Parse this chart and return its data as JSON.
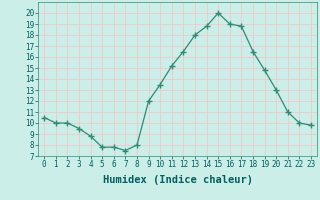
{
  "x": [
    0,
    1,
    2,
    3,
    4,
    5,
    6,
    7,
    8,
    9,
    10,
    11,
    12,
    13,
    14,
    15,
    16,
    17,
    18,
    19,
    20,
    21,
    22,
    23
  ],
  "y": [
    10.5,
    10.0,
    10.0,
    9.5,
    8.8,
    7.8,
    7.8,
    7.5,
    8.0,
    12.0,
    13.5,
    15.2,
    16.5,
    18.0,
    18.8,
    20.0,
    19.0,
    18.8,
    16.5,
    14.8,
    13.0,
    11.0,
    10.0,
    9.8
  ],
  "xlabel": "Humidex (Indice chaleur)",
  "ylim": [
    7,
    21
  ],
  "xlim": [
    -0.5,
    23.5
  ],
  "yticks": [
    7,
    8,
    9,
    10,
    11,
    12,
    13,
    14,
    15,
    16,
    17,
    18,
    19,
    20
  ],
  "xticks": [
    0,
    1,
    2,
    3,
    4,
    5,
    6,
    7,
    8,
    9,
    10,
    11,
    12,
    13,
    14,
    15,
    16,
    17,
    18,
    19,
    20,
    21,
    22,
    23
  ],
  "line_color": "#2d8b76",
  "marker_color": "#2d8b76",
  "bg_color": "#cceee8",
  "grid_color": "#f0c8c8",
  "axes_bg": "#cceee8",
  "xlabel_color": "#006060",
  "tick_label_color": "#006060",
  "tick_fontsize": 5.5,
  "xlabel_fontsize": 7.5
}
